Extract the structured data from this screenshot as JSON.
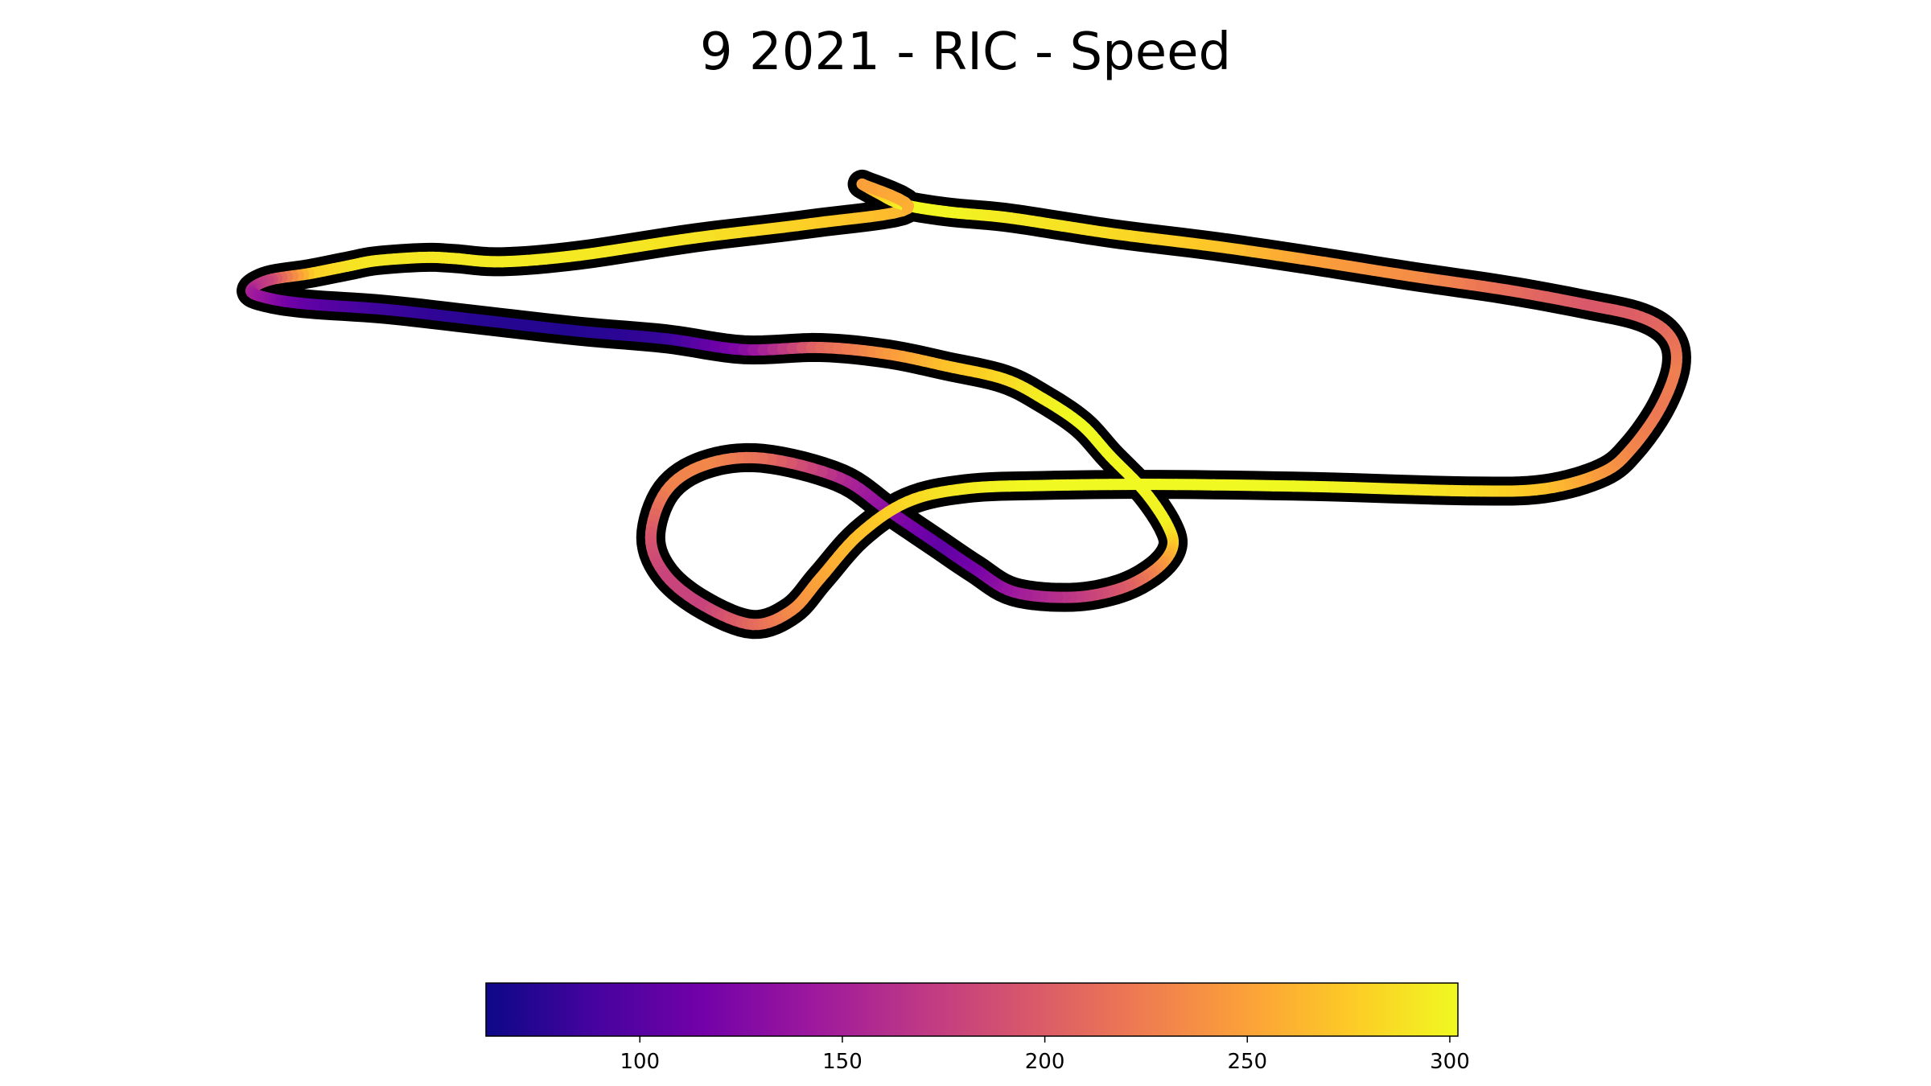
{
  "chart_data": {
    "type": "line",
    "title": "9 2021 - RIC - Speed",
    "colormap": "plasma",
    "colormap_stops": [
      "#0d0887",
      "#46039f",
      "#7201a8",
      "#9c179e",
      "#bd3786",
      "#d8576b",
      "#ed7953",
      "#fb9f3a",
      "#fdca26",
      "#f0f921"
    ],
    "track_edge_color": "#000000",
    "colorbar": {
      "range": [
        62,
        302
      ],
      "ticks": [
        100,
        150,
        200,
        250,
        300
      ],
      "tick_labels": [
        "100",
        "150",
        "200",
        "250",
        "300"
      ]
    },
    "track": {
      "x": [
        0.47,
        0.42,
        0.36,
        0.3,
        0.26,
        0.235,
        0.22,
        0.195,
        0.18,
        0.16,
        0.139,
        0.13,
        0.14,
        0.16,
        0.2,
        0.25,
        0.3,
        0.345,
        0.385,
        0.425,
        0.46,
        0.49,
        0.52,
        0.54,
        0.56,
        0.575,
        0.593,
        0.605,
        0.607,
        0.598,
        0.58,
        0.555,
        0.525,
        0.505,
        0.485,
        0.46,
        0.435,
        0.395,
        0.365,
        0.345,
        0.337,
        0.345,
        0.365,
        0.39,
        0.41,
        0.425,
        0.445,
        0.47,
        0.5,
        0.54,
        0.6,
        0.68,
        0.76,
        0.8,
        0.83,
        0.845,
        0.86,
        0.868,
        0.865,
        0.85,
        0.82,
        0.78,
        0.73,
        0.68,
        0.63,
        0.58,
        0.55,
        0.52,
        0.49,
        0.467,
        0.455,
        0.447,
        0.47
      ],
      "y": [
        0.808,
        0.794,
        0.781,
        0.765,
        0.759,
        0.762,
        0.763,
        0.76,
        0.755,
        0.748,
        0.742,
        0.732,
        0.725,
        0.72,
        0.715,
        0.705,
        0.695,
        0.688,
        0.678,
        0.68,
        0.674,
        0.663,
        0.651,
        0.633,
        0.609,
        0.58,
        0.547,
        0.515,
        0.495,
        0.475,
        0.458,
        0.45,
        0.455,
        0.476,
        0.5,
        0.53,
        0.56,
        0.578,
        0.572,
        0.548,
        0.505,
        0.47,
        0.442,
        0.425,
        0.438,
        0.468,
        0.508,
        0.538,
        0.55,
        0.553,
        0.554,
        0.552,
        0.548,
        0.55,
        0.565,
        0.587,
        0.625,
        0.663,
        0.69,
        0.708,
        0.72,
        0.733,
        0.746,
        0.76,
        0.773,
        0.784,
        0.792,
        0.8,
        0.805,
        0.812,
        0.822,
        0.83,
        0.808
      ],
      "speed": [
        259,
        277,
        289,
        293,
        294,
        293,
        292,
        291,
        290,
        279,
        181,
        154,
        135,
        107,
        84,
        74,
        72,
        81,
        126,
        208,
        243,
        269,
        283,
        295,
        303,
        301,
        300,
        297,
        273,
        235,
        198,
        171,
        146,
        120,
        104,
        128,
        156,
        212,
        232,
        228,
        195,
        180,
        178,
        209,
        233,
        251,
        268,
        282,
        293,
        303,
        304,
        301,
        286,
        271,
        245,
        232,
        221,
        226,
        216,
        204,
        196,
        212,
        236,
        248,
        271,
        283,
        289,
        293,
        300,
        301,
        280,
        248,
        259
      ]
    }
  }
}
